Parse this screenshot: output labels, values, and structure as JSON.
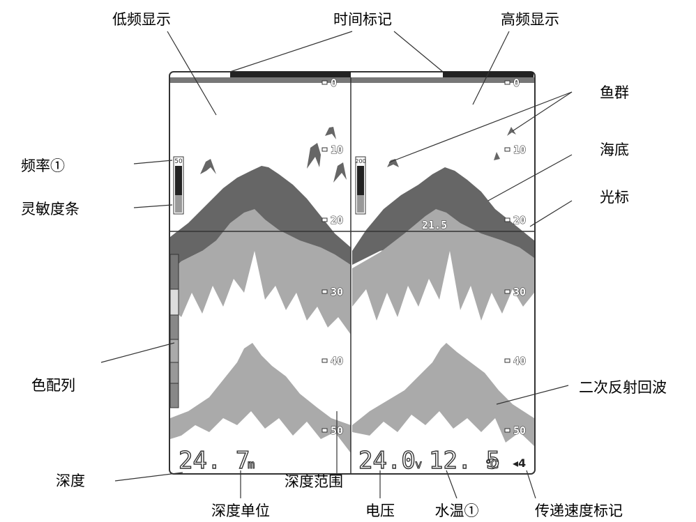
{
  "callouts": {
    "low_freq": "低频显示",
    "time_mark": "时间标记",
    "high_freq": "高频显示",
    "fish": "鱼群",
    "seabed": "海底",
    "cursor": "光标",
    "frequency": "频率①",
    "gain_bar": "灵敏度条",
    "color_bar": "色配列",
    "second_echo": "二次反射回波",
    "depth": "深度",
    "depth_range": "深度范围",
    "depth_unit": "深度单位",
    "voltage": "电压",
    "water_temp": "水温①",
    "speed_mark": "传递速度标记"
  },
  "screen": {
    "left_scale": [
      "0",
      "10",
      "20",
      "30",
      "40",
      "50"
    ],
    "right_scale": [
      "0",
      "10",
      "20",
      "30",
      "40",
      "50"
    ],
    "left_freq": "50",
    "right_freq": "200",
    "cursor_depth": "21.5",
    "depth": "24. 7",
    "depth_unit": "m",
    "voltage": "24.0",
    "voltage_unit": "v",
    "water_temp": "12. 5",
    "temp_unit": "℃",
    "speed_mark": "◂4"
  }
}
